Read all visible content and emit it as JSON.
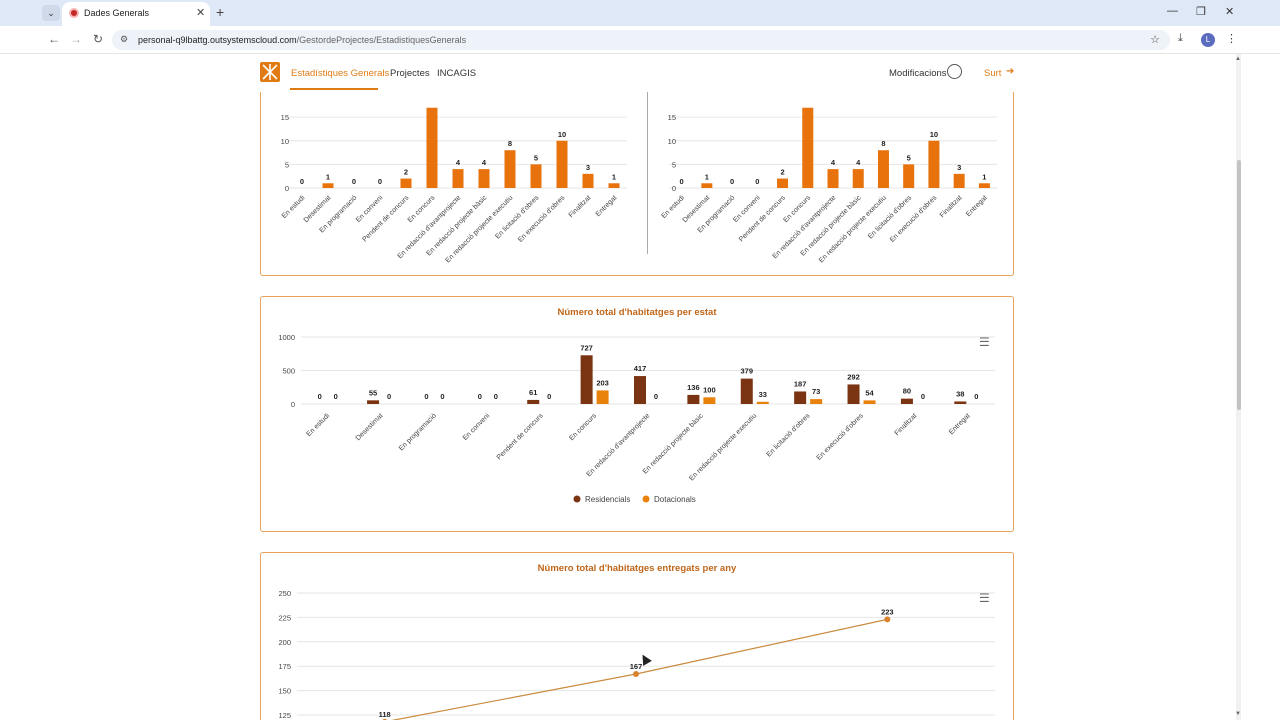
{
  "browser": {
    "tab_title": "Dades Generals",
    "url_host": "personal-q9lbattg.outsystemscloud.com",
    "url_path": "/GestordeProjectes/EstadistiquesGenerals",
    "profile_initial": "L"
  },
  "app": {
    "nav": [
      "Estadístiques Generals",
      "Projectes",
      "INCAGIS"
    ],
    "user_link": "Modificacions",
    "logout": "Surt"
  },
  "chart_data": [
    {
      "type": "bar",
      "categories": [
        "En estudi",
        "Desestimat",
        "En programació",
        "En conveni",
        "Pendent de concurs",
        "En concurs",
        "En redacció d'avantprojecte",
        "En redacció projecte bàsic",
        "En redacció projecte executiu",
        "En licitació d'obres",
        "En execució d'obres",
        "Finalitzat",
        "Entregat"
      ],
      "values": [
        0,
        1,
        0,
        0,
        2,
        17,
        4,
        4,
        8,
        5,
        10,
        3,
        1
      ],
      "labels": [
        "0",
        "1",
        "0",
        "0",
        "2",
        "",
        "4",
        "4",
        "8",
        "5",
        "10",
        "3",
        "1"
      ],
      "yticks": [
        "15",
        "10",
        "5",
        "0"
      ],
      "ylim": [
        0,
        18
      ],
      "color": "#e8720c"
    },
    {
      "type": "bar",
      "categories": [
        "En estudi",
        "Desestimat",
        "En programació",
        "En conveni",
        "Pendent de concurs",
        "En concurs",
        "En redacció d'avantprojecte",
        "En redacció projecte bàsic",
        "En redacció projecte executiu",
        "En licitació d'obres",
        "En execució d'obres",
        "Finalitzat",
        "Entregat"
      ],
      "values": [
        0,
        1,
        0,
        0,
        2,
        17,
        4,
        4,
        8,
        5,
        10,
        3,
        1
      ],
      "labels": [
        "0",
        "1",
        "0",
        "0",
        "2",
        "",
        "4",
        "4",
        "8",
        "5",
        "10",
        "3",
        "1"
      ],
      "yticks": [
        "15",
        "10",
        "5",
        "0"
      ],
      "ylim": [
        0,
        18
      ],
      "color": "#e8720c"
    },
    {
      "type": "bar",
      "title": "Número total d'habitatges per estat",
      "categories": [
        "En estudi",
        "Desestimat",
        "En programació",
        "En conveni",
        "Pendent de concurs",
        "En concurs",
        "En redacció d'avantprojecte",
        "En redacció projecte bàsic",
        "En redacció projecte executiu",
        "En licitació d'obres",
        "En execució d'obres",
        "Finalitzat",
        "Entregat"
      ],
      "series": [
        {
          "name": "Residencials",
          "color": "#7a3412",
          "values": [
            0,
            55,
            0,
            0,
            61,
            727,
            417,
            136,
            379,
            187,
            292,
            80,
            38
          ]
        },
        {
          "name": "Dotacionals",
          "color": "#e8820c",
          "values": [
            0,
            0,
            0,
            0,
            0,
            203,
            0,
            100,
            33,
            73,
            54,
            0,
            0
          ]
        }
      ],
      "yticks": [
        "1000",
        "500",
        "0"
      ],
      "ylim": [
        0,
        1000
      ],
      "legend": "bottom"
    },
    {
      "type": "line",
      "title": "Número total d'habitatges entregats per any",
      "points": [
        {
          "label": "118",
          "value": 118
        },
        {
          "label": "167",
          "value": 167
        },
        {
          "label": "223",
          "value": 223
        }
      ],
      "yticks": [
        "250",
        "225",
        "200",
        "175",
        "150",
        "125"
      ],
      "ylim": [
        125,
        250
      ],
      "color": "#c98a3e"
    }
  ]
}
